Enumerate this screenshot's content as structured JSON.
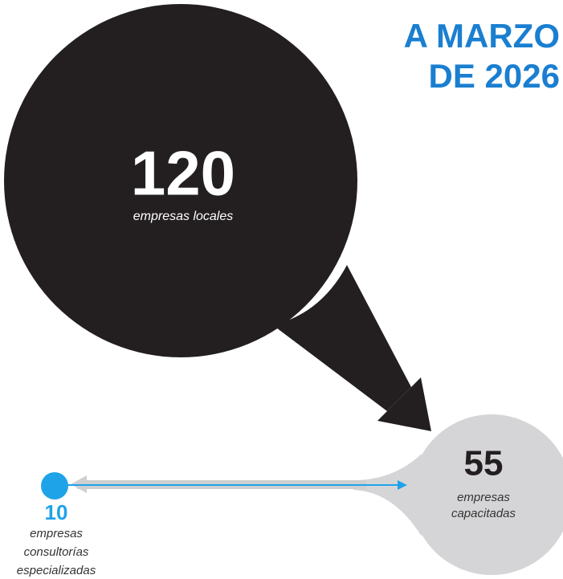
{
  "header": {
    "title_lines": [
      "A MARZO",
      "DE 2026"
    ]
  },
  "nodes": [
    {
      "value": "120",
      "label_lines": [
        "empresas locales"
      ]
    },
    {
      "value": "55",
      "label_lines": [
        "empresas",
        "capacitadas"
      ]
    },
    {
      "value": "10",
      "label_lines": [
        "empresas",
        "consultorías",
        "especializadas"
      ]
    }
  ]
}
